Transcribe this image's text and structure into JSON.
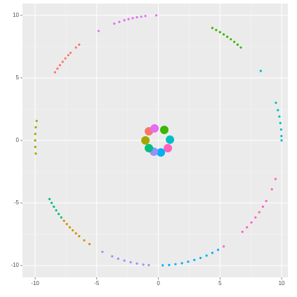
{
  "chart_data": {
    "type": "scatter",
    "xlim": [
      -11.03,
      10.51
    ],
    "ylim": [
      -10.95,
      10.95
    ],
    "xticks": [
      -10,
      -5,
      0,
      5,
      10
    ],
    "yticks": [
      -10,
      -5,
      0,
      5,
      10
    ],
    "grid": true,
    "series": [
      {
        "color": "#F8766D",
        "x": [
          -8.39,
          -8.19,
          -7.99,
          -7.77,
          -7.55,
          -7.31,
          -7.13,
          -6.69,
          -6.43
        ],
        "y": [
          5.45,
          5.74,
          6.02,
          6.29,
          6.56,
          6.82,
          7.01,
          7.43,
          7.66
        ]
      },
      {
        "color": "#A3A500",
        "x": [
          -9.88,
          -9.95,
          -9.99,
          -10,
          -9.99,
          -9.95
        ],
        "y": [
          1.56,
          1.05,
          0.52,
          0,
          -0.52,
          -1.05
        ]
      },
      {
        "color": "#00BF7D",
        "x": [
          -8.83,
          -8.66,
          -8.48,
          -8.29,
          -8.09,
          -7.88
        ],
        "y": [
          -4.69,
          -5.0,
          -5.3,
          -5.59,
          -5.88,
          -6.16
        ]
      },
      {
        "color": "#D89000",
        "x": [
          -7.66,
          -7.43,
          -7.19,
          -6.95,
          -6.69,
          -6.43,
          -6.02,
          -5.59
        ],
        "y": [
          -6.43,
          -6.69,
          -6.95,
          -7.19,
          -7.43,
          -7.66,
          -7.99,
          -8.29
        ]
      },
      {
        "color": "#9590FF",
        "x": [
          -4.54,
          -3.75,
          -3.26,
          -2.76,
          -2.25,
          -1.74,
          -1.22,
          -0.78
        ],
        "y": [
          -8.91,
          -9.27,
          -9.46,
          -9.61,
          -9.74,
          -9.85,
          -9.93,
          -9.97
        ]
      },
      {
        "color": "#00B0F6",
        "x": [
          0.35,
          0.87,
          1.39,
          1.91,
          2.42,
          2.92,
          3.42,
          3.91,
          4.38,
          4.85
        ],
        "y": [
          -9.99,
          -9.96,
          -9.9,
          -9.82,
          -9.7,
          -9.56,
          -9.4,
          -9.21,
          -8.99,
          -8.75
        ]
      },
      {
        "color": "#FF62BC",
        "x": [
          5.3,
          6.82,
          7.19,
          7.55,
          7.88,
          8.19,
          8.48,
          8.75,
          9.21,
          9.51
        ],
        "y": [
          -8.48,
          -7.31,
          -6.95,
          -6.56,
          -6.16,
          -5.74,
          -5.3,
          -4.85,
          -3.91,
          -3.09
        ]
      },
      {
        "color": "#00BFC4",
        "x": [
          9.54,
          9.7,
          9.82,
          9.9,
          9.96,
          9.99,
          10,
          8.31
        ],
        "y": [
          3.01,
          2.42,
          1.91,
          1.39,
          0.87,
          0.35,
          0,
          5.56
        ]
      },
      {
        "color": "#39B600",
        "x": [
          4.38,
          4.69,
          5.0,
          5.3,
          5.59,
          5.88,
          6.16,
          6.43,
          6.69
        ],
        "y": [
          8.99,
          8.83,
          8.66,
          8.48,
          8.29,
          8.09,
          7.88,
          7.66,
          7.43
        ]
      },
      {
        "color": "#E76BF3",
        "x": [
          -0.17,
          -1.05,
          -1.39,
          -1.74,
          -2.08,
          -2.42,
          -2.76,
          -3.17,
          -3.58,
          -4.85
        ],
        "y": [
          10.0,
          9.95,
          9.9,
          9.85,
          9.78,
          9.7,
          9.61,
          9.48,
          9.34,
          8.75
        ]
      }
    ],
    "centers": {
      "x": [
        -0.77,
        -0.31,
        0.48,
        0.94,
        0.77,
        0.2,
        -0.37,
        -0.77,
        -1.05
      ],
      "y": [
        0.73,
        0.96,
        0.84,
        0.06,
        -0.62,
        -0.96,
        -0.9,
        -0.62,
        0.0
      ],
      "colors": [
        "#F8766D",
        "#E76BF3",
        "#39B600",
        "#00BFC4",
        "#FF62BC",
        "#00B0F6",
        "#9590FF",
        "#00BF7D",
        "#A3A500"
      ]
    }
  }
}
